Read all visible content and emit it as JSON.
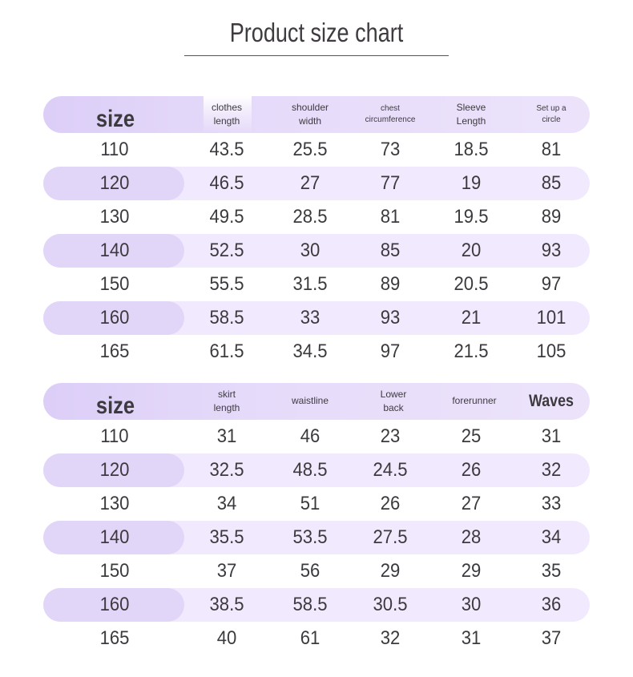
{
  "title": "Product size chart",
  "colors": {
    "header_band": "#dccef7",
    "row_shade": "#f1e9fd",
    "size_pill": "#e2d6f8",
    "text": "#3d3a3f"
  },
  "table1": {
    "headers": [
      {
        "l1": "size",
        "l2": ""
      },
      {
        "l1": "clothes",
        "l2": "length"
      },
      {
        "l1": "shoulder",
        "l2": "width"
      },
      {
        "l1": "chest",
        "l2": "circumference"
      },
      {
        "l1": "Sleeve",
        "l2": "Length"
      },
      {
        "l1": "Set up a",
        "l2": "circle"
      }
    ],
    "rows": [
      [
        "110",
        "43.5",
        "25.5",
        "73",
        "18.5",
        "81"
      ],
      [
        "120",
        "46.5",
        "27",
        "77",
        "19",
        "85"
      ],
      [
        "130",
        "49.5",
        "28.5",
        "81",
        "19.5",
        "89"
      ],
      [
        "140",
        "52.5",
        "30",
        "85",
        "20",
        "93"
      ],
      [
        "150",
        "55.5",
        "31.5",
        "89",
        "20.5",
        "97"
      ],
      [
        "160",
        "58.5",
        "33",
        "93",
        "21",
        "101"
      ],
      [
        "165",
        "61.5",
        "34.5",
        "97",
        "21.5",
        "105"
      ]
    ]
  },
  "table2": {
    "headers": [
      {
        "l1": "size",
        "l2": ""
      },
      {
        "l1": "skirt",
        "l2": "length"
      },
      {
        "l1": "waistline",
        "l2": ""
      },
      {
        "l1": "Lower",
        "l2": "back"
      },
      {
        "l1": "forerunner",
        "l2": ""
      },
      {
        "l1": "Waves",
        "l2": ""
      }
    ],
    "rows": [
      [
        "110",
        "31",
        "46",
        "23",
        "25",
        "31"
      ],
      [
        "120",
        "32.5",
        "48.5",
        "24.5",
        "26",
        "32"
      ],
      [
        "130",
        "34",
        "51",
        "26",
        "27",
        "33"
      ],
      [
        "140",
        "35.5",
        "53.5",
        "27.5",
        "28",
        "34"
      ],
      [
        "150",
        "37",
        "56",
        "29",
        "29",
        "35"
      ],
      [
        "160",
        "38.5",
        "58.5",
        "30.5",
        "30",
        "36"
      ],
      [
        "165",
        "40",
        "61",
        "32",
        "31",
        "37"
      ]
    ]
  }
}
